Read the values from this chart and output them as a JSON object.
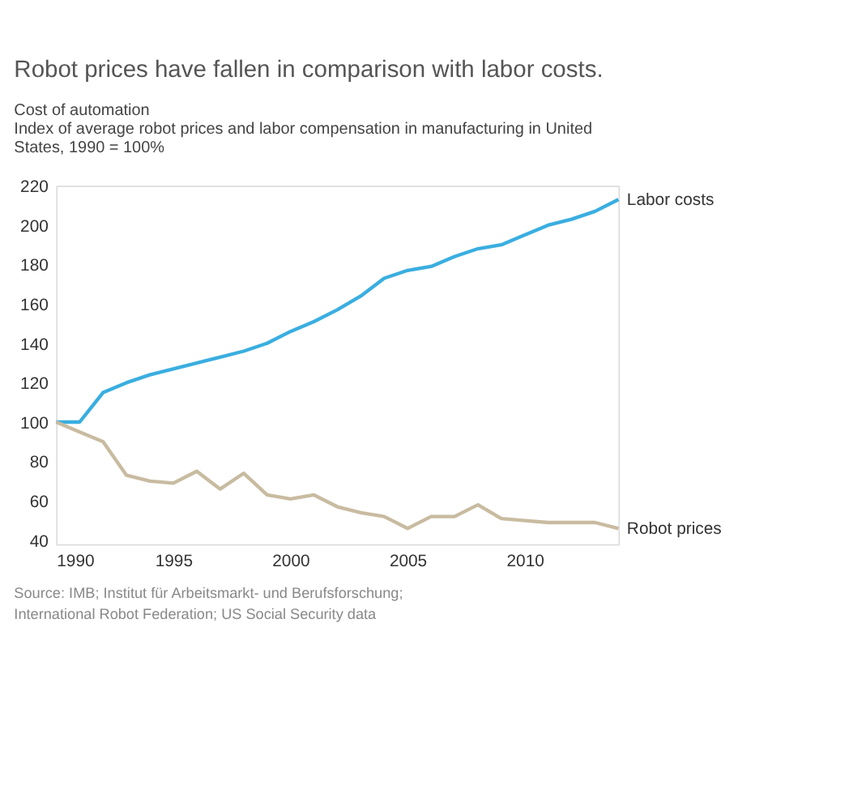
{
  "chart_data": {
    "type": "line",
    "title": "Robot prices have fallen in comparison with labor costs.",
    "subtitle": "Cost of automation",
    "ylabel": "Index of average robot prices and labor compensation in manufacturing in United States, 1990 = 100%",
    "x": [
      1990,
      1991,
      1992,
      1993,
      1994,
      1995,
      1996,
      1997,
      1998,
      1999,
      2000,
      2001,
      2002,
      2003,
      2004,
      2005,
      2006,
      2007,
      2008,
      2009,
      2010,
      2011,
      2012,
      2013,
      2014
    ],
    "series": [
      {
        "name": "Labor costs",
        "color": "#3aaee0",
        "values": [
          100,
          100,
          115,
          120,
          124,
          127,
          130,
          133,
          136,
          140,
          146,
          151,
          157,
          164,
          173,
          177,
          179,
          184,
          188,
          190,
          195,
          200,
          203,
          207,
          213
        ]
      },
      {
        "name": "Robot prices",
        "color": "#c8bba0",
        "values": [
          100,
          95,
          90,
          73,
          70,
          69,
          75,
          66,
          74,
          63,
          61,
          63,
          57,
          54,
          52,
          46,
          52,
          52,
          58,
          51,
          50,
          49,
          49,
          49,
          46
        ]
      }
    ],
    "xlim": [
      1990,
      2014
    ],
    "xticks": [
      1990,
      1995,
      2000,
      2005,
      2010
    ],
    "ylim": [
      38,
      220
    ],
    "yticks": [
      40,
      60,
      80,
      100,
      120,
      140,
      160,
      180,
      200,
      220
    ],
    "grid": false,
    "legend": false,
    "marker": "none",
    "line_style": "solid",
    "annotations": [
      "Source: IMB; Institut für Arbeitsmarkt- und Berufsforschung;",
      "International Robot Federation; US Social Security data"
    ]
  }
}
